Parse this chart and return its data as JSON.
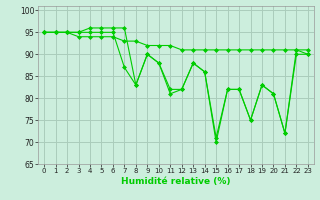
{
  "xlabel": "Humidité relative (%)",
  "background_color": "#cceedd",
  "grid_color": "#aaccbb",
  "line_color": "#00cc00",
  "ylim": [
    65,
    101
  ],
  "xlim": [
    -0.5,
    23.5
  ],
  "yticks": [
    65,
    70,
    75,
    80,
    85,
    90,
    95,
    100
  ],
  "xticks": [
    0,
    1,
    2,
    3,
    4,
    5,
    6,
    7,
    8,
    9,
    10,
    11,
    12,
    13,
    14,
    15,
    16,
    17,
    18,
    19,
    20,
    21,
    22,
    23
  ],
  "series": [
    [
      95,
      95,
      95,
      95,
      96,
      96,
      96,
      96,
      83,
      90,
      88,
      81,
      82,
      88,
      86,
      70,
      82,
      82,
      75,
      83,
      81,
      72,
      90,
      90
    ],
    [
      95,
      95,
      95,
      95,
      95,
      95,
      95,
      87,
      83,
      90,
      88,
      82,
      82,
      88,
      86,
      71,
      82,
      82,
      75,
      83,
      81,
      72,
      91,
      90
    ],
    [
      95,
      95,
      95,
      94,
      94,
      94,
      94,
      93,
      93,
      92,
      92,
      92,
      91,
      91,
      91,
      91,
      91,
      91,
      91,
      91,
      91,
      91,
      91,
      91
    ]
  ]
}
